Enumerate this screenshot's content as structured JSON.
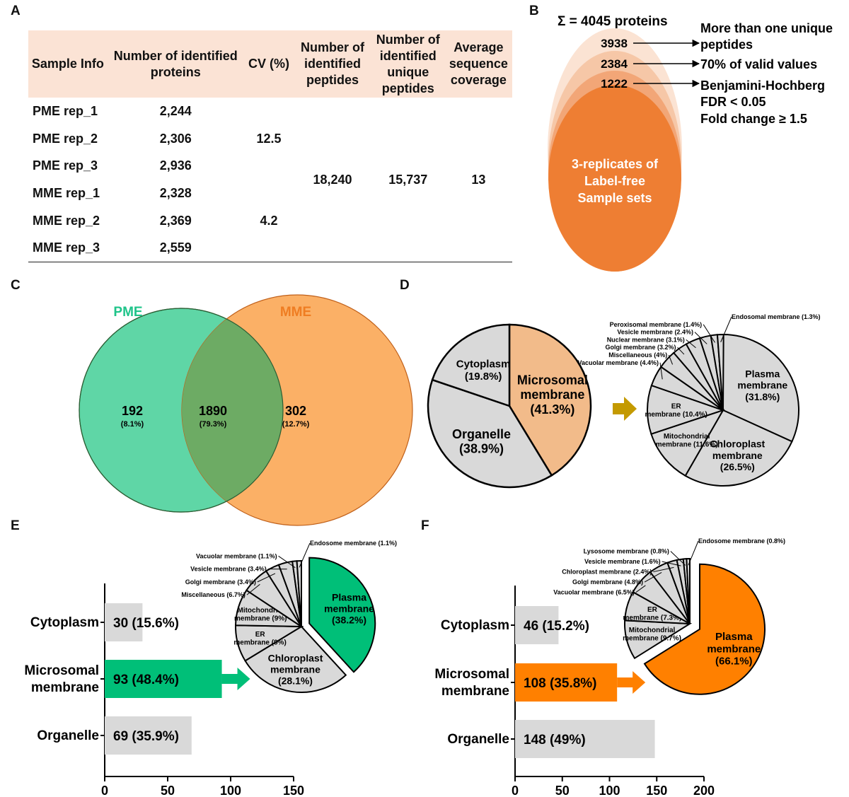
{
  "panels": {
    "a": "A",
    "b": "B",
    "c": "C",
    "d": "D",
    "e": "E",
    "f": "F"
  },
  "table": {
    "headers": [
      "Sample Info",
      "Number of identified proteins",
      "CV (%)",
      "Number of identified peptides",
      "Number of identified unique peptides",
      "Average sequence coverage"
    ],
    "rows": [
      {
        "sample": "PME rep_1",
        "proteins": "2,244"
      },
      {
        "sample": "PME rep_2",
        "proteins": "2,306"
      },
      {
        "sample": "PME rep_3",
        "proteins": "2,936"
      },
      {
        "sample": "MME rep_1",
        "proteins": "2,328"
      },
      {
        "sample": "MME rep_2",
        "proteins": "2,369"
      },
      {
        "sample": "MME rep_3",
        "proteins": "2,559"
      }
    ],
    "cv_pme": "12.5",
    "cv_mme": "4.2",
    "peptides": "18,240",
    "unique_peptides": "15,737",
    "coverage": "13"
  },
  "funnel": {
    "total": "Σ = 4045 proteins",
    "levels": [
      "3938",
      "2384",
      "1222"
    ],
    "criteria": [
      "More than one unique",
      "peptides",
      "70% of valid values",
      "Benjamini-Hochberg",
      "FDR < 0.05",
      "Fold change ≥ 1.5"
    ],
    "core": [
      "3-replicates of",
      "Label-free",
      "Sample sets"
    ],
    "colors": [
      "#fbe3d3",
      "#f6c7a7",
      "#f2a677",
      "#ee7e33"
    ]
  },
  "chart_data": [
    {
      "type": "venn",
      "sets": [
        {
          "name": "PME",
          "color": "#5fd6a6"
        },
        {
          "name": "MME",
          "color": "#fbb066"
        }
      ],
      "regions": [
        {
          "value": "192",
          "pct": "(8.1%)"
        },
        {
          "value": "1890",
          "pct": "(79.3%)"
        },
        {
          "value": "302",
          "pct": "(12.7%)"
        }
      ],
      "overlap_color": "#6dab64"
    },
    {
      "type": "pie",
      "slices": [
        {
          "label": "Microsomal membrane",
          "pct": 41.3,
          "color": "#f2bb8a"
        },
        {
          "label": "Organelle",
          "pct": 38.9,
          "color": "#d9d9d9"
        },
        {
          "label": "Cytoplasm",
          "pct": 19.8,
          "color": "#d9d9d9"
        }
      ]
    },
    {
      "type": "pie",
      "slices": [
        {
          "label": "Plasma membrane",
          "pct": 31.8
        },
        {
          "label": "Chloroplast membrane",
          "pct": 26.5
        },
        {
          "label": "Mitochondrial membrane",
          "pct": 11.6
        },
        {
          "label": "ER membrane",
          "pct": 10.4
        },
        {
          "label": "Vacuolar membrane",
          "pct": 4.4
        },
        {
          "label": "Miscellaneous",
          "pct": 4
        },
        {
          "label": "Golgi membrane",
          "pct": 3.2
        },
        {
          "label": "Nuclear membrane",
          "pct": 3.1
        },
        {
          "label": "Vesicle membrane",
          "pct": 2.4
        },
        {
          "label": "Peroxisomal membrane",
          "pct": 1.4
        },
        {
          "label": "Endosomal membrane",
          "pct": 1.3
        }
      ],
      "color": "#d9d9d9"
    },
    {
      "type": "bar",
      "orientation": "horizontal",
      "categories": [
        "Cytoplasm",
        "Microsomal membrane",
        "Organelle"
      ],
      "values": [
        30,
        93,
        69
      ],
      "value_labels": [
        "30 (15.6%)",
        "93 (48.4%)",
        "69 (35.9%)"
      ],
      "colors": [
        "#d9d9d9",
        "#00bf78",
        "#d9d9d9"
      ],
      "xlim": [
        0,
        150
      ],
      "xticks": [
        0,
        50,
        100,
        150
      ]
    },
    {
      "type": "pie",
      "slices": [
        {
          "label": "Plasma membrane",
          "pct": 38.2,
          "color": "#00bf78"
        },
        {
          "label": "Chloroplast membrane",
          "pct": 28.1
        },
        {
          "label": "ER membrane",
          "pct": 9
        },
        {
          "label": "Mitochondrial membrane",
          "pct": 9
        },
        {
          "label": "Miscellaneous",
          "pct": 6.7
        },
        {
          "label": "Golgi membrane",
          "pct": 3.4
        },
        {
          "label": "Vesicle membrane",
          "pct": 3.4
        },
        {
          "label": "Vacuolar membrane",
          "pct": 1.1
        },
        {
          "label": "Endosome membrane",
          "pct": 1.1
        }
      ],
      "color": "#d9d9d9"
    },
    {
      "type": "bar",
      "orientation": "horizontal",
      "categories": [
        "Cytoplasm",
        "Microsomal membrane",
        "Organelle"
      ],
      "values": [
        46,
        108,
        148
      ],
      "value_labels": [
        "46 (15.2%)",
        "108 (35.8%)",
        "148 (49%)"
      ],
      "colors": [
        "#d9d9d9",
        "#ff8000",
        "#d9d9d9"
      ],
      "xlim": [
        0,
        200
      ],
      "xticks": [
        0,
        50,
        100,
        150,
        200
      ]
    },
    {
      "type": "pie",
      "slices": [
        {
          "label": "Plasma membrane",
          "pct": 66.1,
          "color": "#ff8000"
        },
        {
          "label": "Mitochondrial membrane",
          "pct": 9.7
        },
        {
          "label": "ER membrane",
          "pct": 7.3
        },
        {
          "label": "Vacuolar membrane",
          "pct": 6.5
        },
        {
          "label": "Golgi membrane",
          "pct": 4.8
        },
        {
          "label": "Chloroplast membrane",
          "pct": 2.4
        },
        {
          "label": "Vesicle membrane",
          "pct": 1.6
        },
        {
          "label": "Lysosome membrane",
          "pct": 0.8
        },
        {
          "label": "Endosome membrane",
          "pct": 0.8
        }
      ],
      "color": "#d9d9d9"
    }
  ],
  "arrow_colors": {
    "d": "#c49a00",
    "e": "#00bf78",
    "f": "#ff8000"
  }
}
